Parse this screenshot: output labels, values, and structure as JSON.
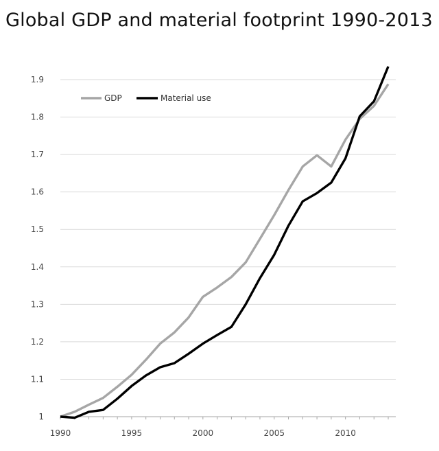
{
  "chart_data": {
    "type": "line",
    "title": "Global GDP and material footprint 1990-2013",
    "xlabel": "",
    "ylabel": "",
    "xlim": [
      1990,
      2013
    ],
    "ylim": [
      1,
      1.95
    ],
    "x_ticks": [
      1990,
      1995,
      2000,
      2005,
      2010
    ],
    "y_ticks": [
      1,
      1.1,
      1.2,
      1.3,
      1.4,
      1.5,
      1.6,
      1.7,
      1.8,
      1.9
    ],
    "y_tick_labels": [
      "1",
      "1.1",
      "1.2",
      "1.3",
      "1.4",
      "1.5",
      "1.6",
      "1.7",
      "1.8",
      "1.9"
    ],
    "grid": "horizontal",
    "legend_position": "top-left",
    "x": [
      1990,
      1991,
      1992,
      1993,
      1994,
      1995,
      1996,
      1997,
      1998,
      1999,
      2000,
      2001,
      2002,
      2003,
      2004,
      2005,
      2006,
      2007,
      2008,
      2009,
      2010,
      2011,
      2012,
      2013
    ],
    "series": [
      {
        "name": "GDP",
        "color": "#a6a6a6",
        "values": [
          1.0,
          1.013,
          1.032,
          1.05,
          1.08,
          1.112,
          1.152,
          1.195,
          1.225,
          1.265,
          1.32,
          1.345,
          1.373,
          1.412,
          1.475,
          1.538,
          1.605,
          1.668,
          1.698,
          1.668,
          1.74,
          1.795,
          1.83,
          1.888
        ]
      },
      {
        "name": "Material use",
        "color": "#000000",
        "values": [
          1.0,
          0.997,
          1.013,
          1.018,
          1.048,
          1.082,
          1.11,
          1.132,
          1.143,
          1.168,
          1.195,
          1.218,
          1.24,
          1.3,
          1.37,
          1.432,
          1.51,
          1.575,
          1.597,
          1.625,
          1.69,
          1.802,
          1.842,
          1.935
        ]
      }
    ]
  }
}
